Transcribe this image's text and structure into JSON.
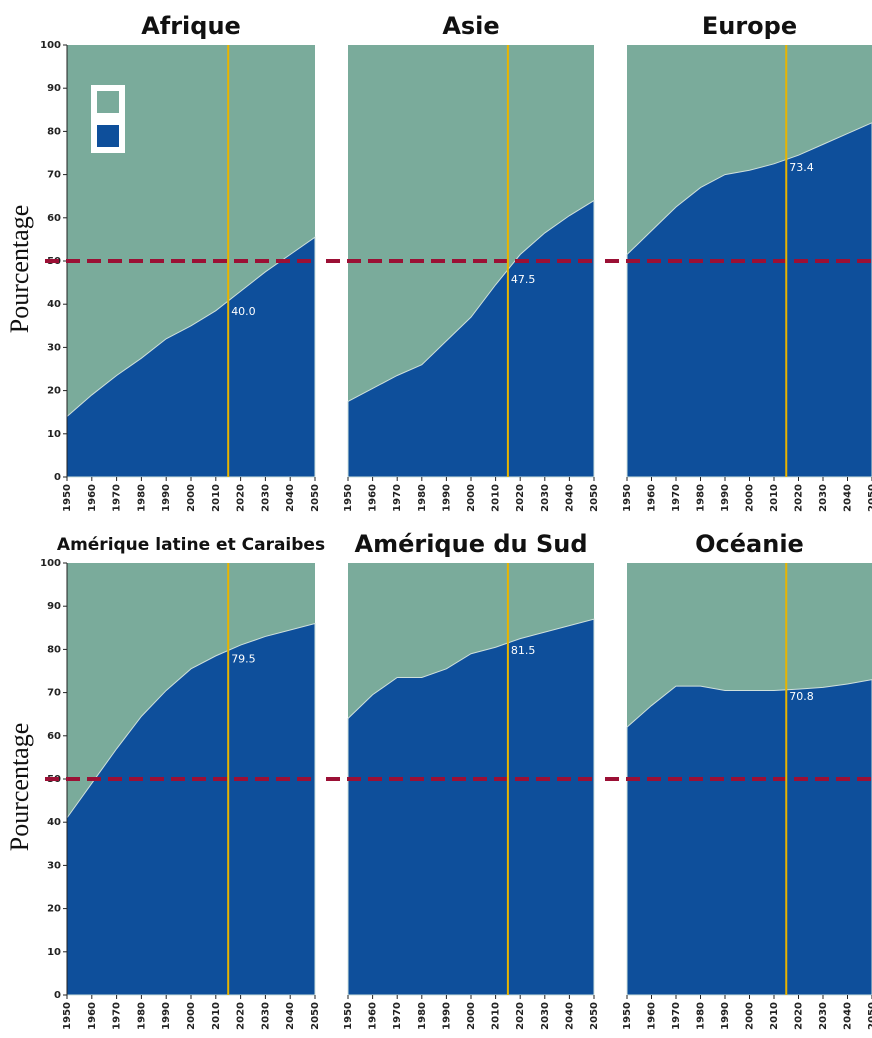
{
  "chart_data": [
    {
      "type": "area",
      "title": "Afrique",
      "ylabel": "Pourcentage",
      "background_color": "#7aab9b",
      "x": [
        1950,
        1960,
        1970,
        1980,
        1990,
        2000,
        2010,
        2020,
        2030,
        2040,
        2050
      ],
      "series": [
        {
          "color": "#0e4f9b",
          "values": [
            14,
            19,
            23.5,
            27.5,
            32,
            35,
            38.5,
            43,
            47.5,
            51.5,
            55.5
          ]
        }
      ],
      "xlim": [
        1950,
        2050
      ],
      "ylim": [
        0,
        100
      ],
      "xticks": [
        1950,
        1960,
        1970,
        1980,
        1990,
        2000,
        2010,
        2020,
        2030,
        2040,
        2050
      ],
      "yticks": [
        0,
        10,
        20,
        30,
        40,
        50,
        60,
        70,
        80,
        90,
        100
      ],
      "annotation": {
        "x": 2015,
        "value": 40,
        "label": "40.0"
      },
      "reference_line": 50,
      "legend": "upper left"
    },
    {
      "type": "area",
      "title": "Asie",
      "background_color": "#7aab9b",
      "x": [
        1950,
        1960,
        1970,
        1980,
        1990,
        2000,
        2010,
        2020,
        2030,
        2040,
        2050
      ],
      "series": [
        {
          "color": "#0e4f9b",
          "values": [
            17.5,
            20.5,
            23.5,
            26,
            31.5,
            37,
            44.5,
            51.5,
            56.5,
            60.5,
            64
          ]
        }
      ],
      "xlim": [
        1950,
        2050
      ],
      "ylim": [
        0,
        100
      ],
      "xticks": [
        1950,
        1960,
        1970,
        1980,
        1990,
        2000,
        2010,
        2020,
        2030,
        2040,
        2050
      ],
      "annotation": {
        "x": 2015,
        "value": 47.5
      },
      "reference_line": 50
    },
    {
      "type": "area",
      "title": "Europe",
      "background_color": "#7aab9b",
      "x": [
        1950,
        1960,
        1970,
        1980,
        1990,
        2000,
        2010,
        2020,
        2030,
        2040,
        2050
      ],
      "series": [
        {
          "color": "#0e4f9b",
          "values": [
            51.5,
            57,
            62.5,
            67,
            70,
            71,
            72.5,
            74.5,
            77,
            79.5,
            82
          ]
        }
      ],
      "xlim": [
        1950,
        2050
      ],
      "ylim": [
        0,
        100
      ],
      "xticks": [
        1950,
        1960,
        1970,
        1980,
        1990,
        2000,
        2010,
        2020,
        2030,
        2040,
        2050
      ],
      "annotation": {
        "x": 2015,
        "value": 73.4
      },
      "reference_line": 50
    },
    {
      "type": "area",
      "title": "Amérique latine et Caraibes",
      "ylabel": "Pourcentage",
      "background_color": "#7aab9b",
      "x": [
        1950,
        1960,
        1970,
        1980,
        1990,
        2000,
        2010,
        2020,
        2030,
        2040,
        2050
      ],
      "series": [
        {
          "color": "#0e4f9b",
          "values": [
            41,
            49,
            57,
            64.5,
            70.5,
            75.5,
            78.5,
            81,
            83,
            84.5,
            86
          ]
        }
      ],
      "xlim": [
        1950,
        2050
      ],
      "ylim": [
        0,
        100
      ],
      "xticks": [
        1950,
        1960,
        1970,
        1980,
        1990,
        2000,
        2010,
        2020,
        2030,
        2040,
        2050
      ],
      "yticks": [
        0,
        10,
        20,
        30,
        40,
        50,
        60,
        70,
        80,
        90,
        100
      ],
      "annotation": {
        "x": 2015,
        "value": 79.5
      },
      "reference_line": 50
    },
    {
      "type": "area",
      "title": "Amérique du Sud",
      "background_color": "#7aab9b",
      "x": [
        1950,
        1960,
        1970,
        1980,
        1990,
        2000,
        2010,
        2020,
        2030,
        2040,
        2050
      ],
      "series": [
        {
          "color": "#0e4f9b",
          "values": [
            64,
            69.5,
            73.5,
            73.5,
            75.5,
            79,
            80.5,
            82.5,
            84,
            85.5,
            87
          ]
        }
      ],
      "xlim": [
        1950,
        2050
      ],
      "ylim": [
        0,
        100
      ],
      "xticks": [
        1950,
        1960,
        1970,
        1980,
        1990,
        2000,
        2010,
        2020,
        2030,
        2040,
        2050
      ],
      "annotation": {
        "x": 2015,
        "value": 81.5
      },
      "reference_line": 50
    },
    {
      "type": "area",
      "title": "Océanie",
      "background_color": "#7aab9b",
      "x": [
        1950,
        1960,
        1970,
        1980,
        1990,
        2000,
        2010,
        2020,
        2030,
        2040,
        2050
      ],
      "series": [
        {
          "color": "#0e4f9b",
          "values": [
            62,
            67,
            71.5,
            71.5,
            70.5,
            70.5,
            70.5,
            70.8,
            71.2,
            72,
            73
          ]
        }
      ],
      "xlim": [
        1950,
        2050
      ],
      "ylim": [
        0,
        100
      ],
      "xticks": [
        1950,
        1960,
        1970,
        1980,
        1990,
        2000,
        2010,
        2020,
        2030,
        2040,
        2050
      ],
      "annotation": {
        "x": 2015,
        "value": 70.8
      },
      "reference_line": 50
    }
  ]
}
